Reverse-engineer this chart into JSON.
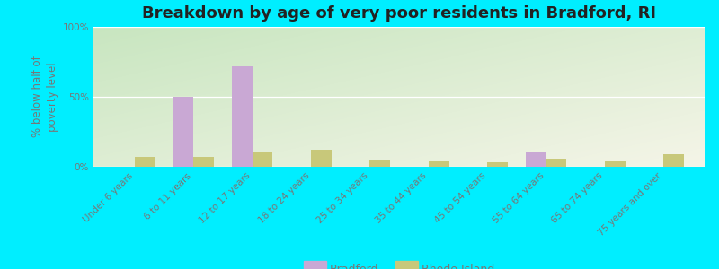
{
  "title": "Breakdown by age of very poor residents in Bradford, RI",
  "ylabel": "% below half of\npoverty level",
  "categories": [
    "Under 6 years",
    "6 to 11 years",
    "12 to 17 years",
    "18 to 24 years",
    "25 to 34 years",
    "35 to 44 years",
    "45 to 54 years",
    "55 to 64 years",
    "65 to 74 years",
    "75 years and over"
  ],
  "bradford_values": [
    0,
    50,
    72,
    0,
    0,
    0,
    0,
    10,
    0,
    0
  ],
  "rhode_island_values": [
    7,
    7,
    10,
    12,
    5,
    4,
    3,
    6,
    4,
    9
  ],
  "bradford_color": "#c9a8d4",
  "rhode_island_color": "#c8c87a",
  "ylim": [
    0,
    100
  ],
  "ytick_labels": [
    "0%",
    "50%",
    "100%"
  ],
  "bg_top_left": "#c8e6c0",
  "bg_bottom_right": "#f5f5e8",
  "outer_bg": "#00eeff",
  "bar_width": 0.35,
  "title_fontsize": 13,
  "axis_label_fontsize": 8.5,
  "tick_fontsize": 7.5,
  "legend_fontsize": 9,
  "grid_color": "#ffffff",
  "text_color": "#777777"
}
